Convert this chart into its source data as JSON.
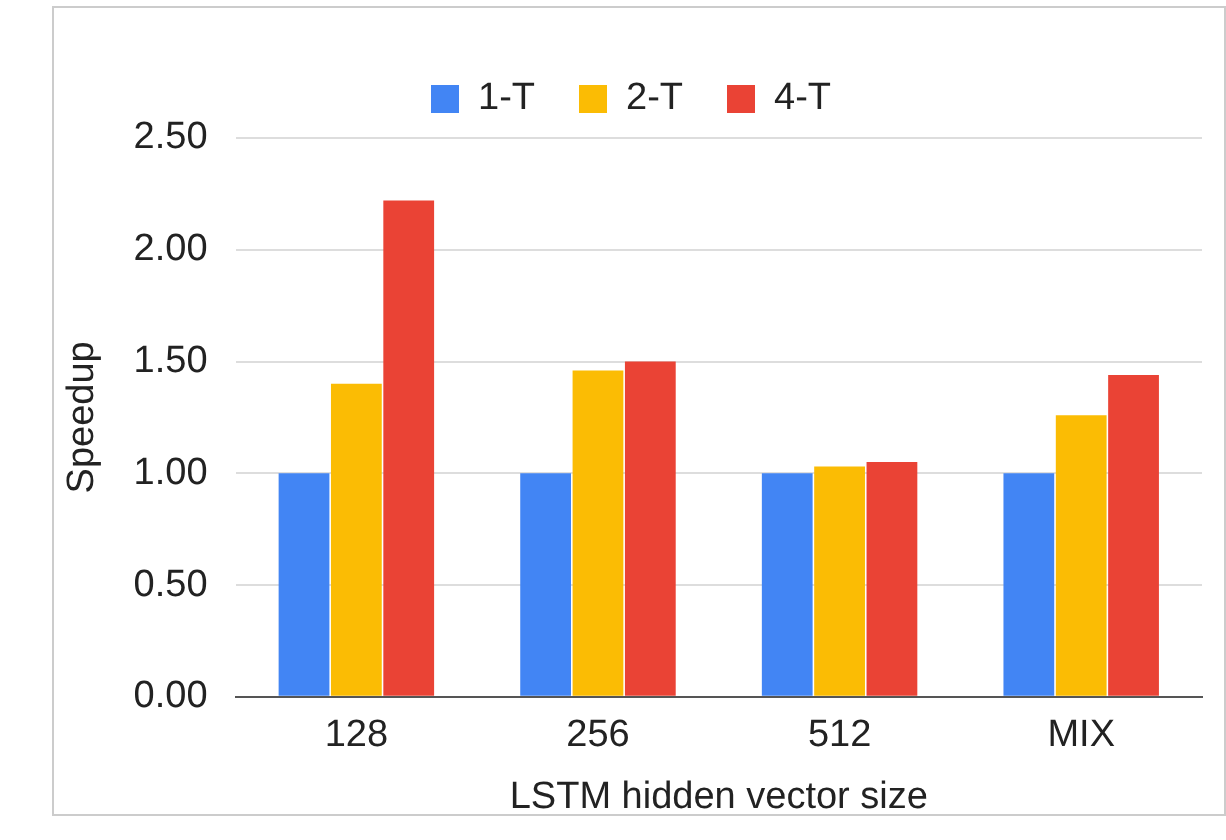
{
  "chart_data": {
    "type": "bar",
    "xlabel": "LSTM hidden vector size",
    "ylabel": "Speedup",
    "categories": [
      "128",
      "256",
      "512",
      "MIX"
    ],
    "series": [
      {
        "name": "1-T",
        "color": "#4285f4",
        "values": [
          1.0,
          1.0,
          1.0,
          1.0
        ]
      },
      {
        "name": "2-T",
        "color": "#fbbc04",
        "values": [
          1.4,
          1.46,
          1.03,
          1.26
        ]
      },
      {
        "name": "4-T",
        "color": "#ea4335",
        "values": [
          2.22,
          1.5,
          1.05,
          1.44
        ]
      }
    ],
    "ylim": [
      0,
      2.5
    ],
    "yticks": [
      {
        "value": 0,
        "label": "0.00"
      },
      {
        "value": 0.5,
        "label": "0.50"
      },
      {
        "value": 1,
        "label": "1.00"
      },
      {
        "value": 1.5,
        "label": "1.50"
      },
      {
        "value": 2,
        "label": "2.00"
      },
      {
        "value": 2.5,
        "label": "2.50"
      }
    ],
    "grid": "y",
    "legend": "top"
  }
}
